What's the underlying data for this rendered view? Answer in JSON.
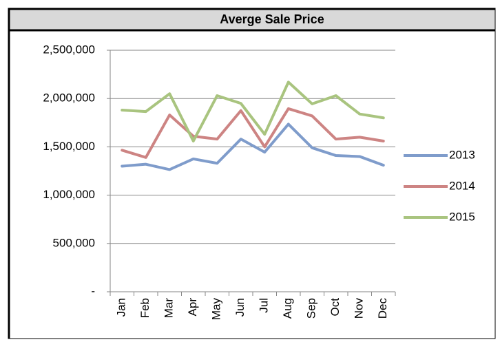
{
  "chart_data": {
    "type": "line",
    "title": "Averge Sale Price",
    "categories": [
      "Jan",
      "Feb",
      "Mar",
      "Apr",
      "May",
      "Jun",
      "Jul",
      "Aug",
      "Sep",
      "Oct",
      "Nov",
      "Dec"
    ],
    "series": [
      {
        "name": "2013",
        "color": "#7f9ccb",
        "values": [
          1300000,
          1320000,
          1265000,
          1375000,
          1330000,
          1580000,
          1445000,
          1735000,
          1490000,
          1410000,
          1400000,
          1310000
        ]
      },
      {
        "name": "2014",
        "color": "#cd8483",
        "values": [
          1465000,
          1390000,
          1830000,
          1610000,
          1580000,
          1875000,
          1500000,
          1895000,
          1820000,
          1580000,
          1600000,
          1560000
        ]
      },
      {
        "name": "2015",
        "color": "#a9c47f",
        "values": [
          1880000,
          1865000,
          2050000,
          1560000,
          2030000,
          1950000,
          1630000,
          2170000,
          1945000,
          2030000,
          1840000,
          1800000
        ]
      }
    ],
    "ylim": [
      0,
      2500000
    ],
    "yticks": [
      {
        "value": 0,
        "label": "-"
      },
      {
        "value": 500000,
        "label": "500,000"
      },
      {
        "value": 1000000,
        "label": "1,000,000"
      },
      {
        "value": 1500000,
        "label": "1,500,000"
      },
      {
        "value": 2000000,
        "label": "2,000,000"
      },
      {
        "value": 2500000,
        "label": "2,500,000"
      }
    ],
    "grid": true,
    "legend": "right"
  }
}
